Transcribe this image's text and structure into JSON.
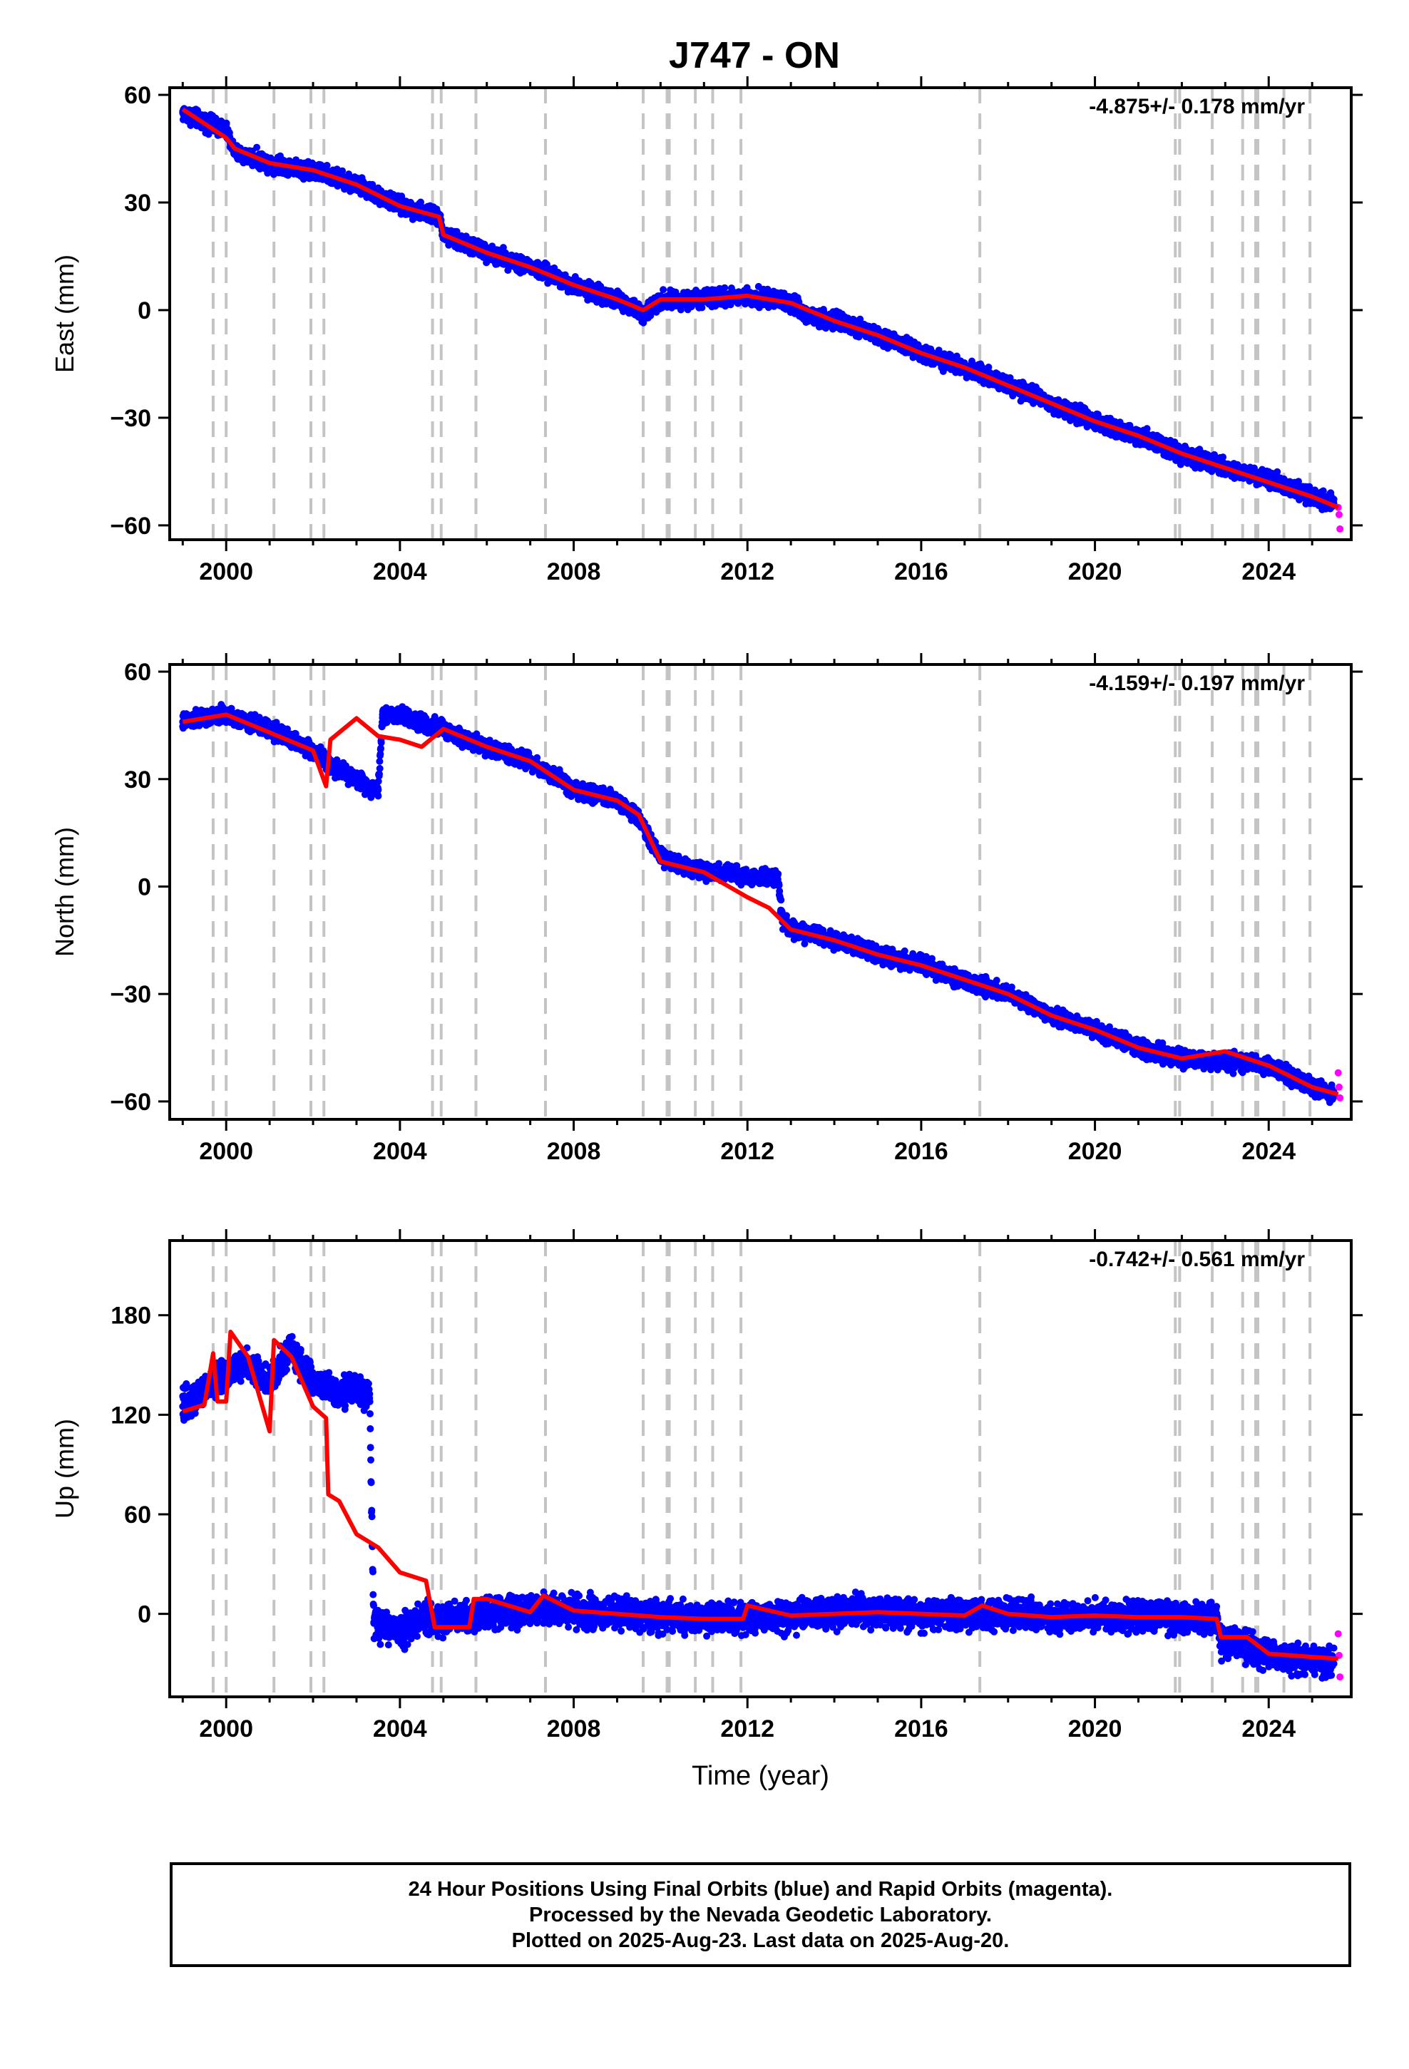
{
  "title": "J747 - ON",
  "chart_data": [
    {
      "type": "scatter",
      "panel": "east",
      "ylabel": "East (mm)",
      "xlabel": "",
      "xlim": [
        1998.7,
        2025.9
      ],
      "ylim": [
        -64,
        62
      ],
      "yticks": [
        60,
        30,
        0,
        -30,
        -60
      ],
      "yticklabels": [
        "60",
        "30",
        "0",
        "−30",
        "−60"
      ],
      "xticks": [
        2000,
        2004,
        2008,
        2012,
        2016,
        2020,
        2024
      ],
      "xticklabels": [
        "2000",
        "2004",
        "2008",
        "2012",
        "2016",
        "2020",
        "2024"
      ],
      "rate_annotation": "-4.875+/- 0.178 mm/yr",
      "series": [
        {
          "color": "#0000ff",
          "points": [
            [
              1999.0,
              55
            ],
            [
              2000.0,
              50
            ],
            [
              2000.2,
              44
            ],
            [
              2001.0,
              41
            ],
            [
              2002.0,
              39
            ],
            [
              2003.0,
              35
            ],
            [
              2004.0,
              29
            ],
            [
              2004.9,
              26
            ],
            [
              2005.0,
              21
            ],
            [
              2006.0,
              16
            ],
            [
              2007.0,
              12
            ],
            [
              2008.0,
              7
            ],
            [
              2009.0,
              3
            ],
            [
              2009.6,
              -1
            ],
            [
              2010.0,
              3
            ],
            [
              2011.0,
              3
            ],
            [
              2012.0,
              4
            ],
            [
              2013.0,
              2
            ],
            [
              2013.5,
              -2
            ],
            [
              2014.0,
              -3
            ],
            [
              2015.0,
              -7
            ],
            [
              2016.0,
              -12
            ],
            [
              2017.0,
              -16
            ],
            [
              2018.0,
              -21
            ],
            [
              2019.0,
              -26
            ],
            [
              2020.0,
              -31
            ],
            [
              2021.0,
              -35
            ],
            [
              2022.0,
              -40
            ],
            [
              2023.0,
              -44
            ],
            [
              2024.0,
              -47
            ],
            [
              2025.0,
              -52
            ],
            [
              2025.5,
              -54
            ]
          ]
        },
        {
          "color": "#ff00ff",
          "points": [
            [
              2025.6,
              -55
            ],
            [
              2025.62,
              -57
            ],
            [
              2025.64,
              -61
            ]
          ]
        },
        {
          "color": "#ff0000",
          "points": [
            [
              1999.0,
              56
            ],
            [
              2000.0,
              48
            ],
            [
              2000.2,
              45
            ],
            [
              2001.0,
              41
            ],
            [
              2002.0,
              39
            ],
            [
              2003.0,
              35
            ],
            [
              2004.0,
              29
            ],
            [
              2004.9,
              26
            ],
            [
              2005.0,
              21
            ],
            [
              2006.0,
              16
            ],
            [
              2007.0,
              12
            ],
            [
              2008.0,
              7
            ],
            [
              2009.0,
              3
            ],
            [
              2009.6,
              0
            ],
            [
              2010.0,
              3
            ],
            [
              2011.0,
              3
            ],
            [
              2012.0,
              4
            ],
            [
              2013.0,
              2
            ],
            [
              2014.0,
              -3
            ],
            [
              2015.0,
              -7
            ],
            [
              2016.0,
              -12
            ],
            [
              2017.0,
              -16
            ],
            [
              2018.0,
              -21
            ],
            [
              2019.0,
              -26
            ],
            [
              2020.0,
              -31
            ],
            [
              2021.0,
              -35
            ],
            [
              2022.0,
              -40
            ],
            [
              2023.0,
              -44
            ],
            [
              2024.0,
              -48
            ],
            [
              2025.0,
              -52
            ],
            [
              2025.6,
              -55
            ]
          ]
        }
      ]
    },
    {
      "type": "scatter",
      "panel": "north",
      "ylabel": "North (mm)",
      "xlabel": "",
      "xlim": [
        1998.7,
        2025.9
      ],
      "ylim": [
        -65,
        62
      ],
      "yticks": [
        60,
        30,
        0,
        -30,
        -60
      ],
      "yticklabels": [
        "60",
        "30",
        "0",
        "−30",
        "−60"
      ],
      "xticks": [
        2000,
        2004,
        2008,
        2012,
        2016,
        2020,
        2024
      ],
      "xticklabels": [
        "2000",
        "2004",
        "2008",
        "2012",
        "2016",
        "2020",
        "2024"
      ],
      "rate_annotation": "-4.159+/- 0.197 mm/yr",
      "series": [
        {
          "color": "#0000ff",
          "points": [
            [
              1999.0,
              46
            ],
            [
              2000.0,
              48
            ],
            [
              2001.0,
              44
            ],
            [
              2002.0,
              38
            ],
            [
              2002.5,
              33
            ],
            [
              2003.0,
              30
            ],
            [
              2003.5,
              27
            ],
            [
              2003.6,
              48
            ],
            [
              2004.0,
              48
            ],
            [
              2004.5,
              46
            ],
            [
              2005.0,
              44
            ],
            [
              2006.0,
              39
            ],
            [
              2007.0,
              35
            ],
            [
              2008.0,
              27
            ],
            [
              2009.0,
              24
            ],
            [
              2009.5,
              19
            ],
            [
              2010.0,
              8
            ],
            [
              2011.0,
              4
            ],
            [
              2012.0,
              3
            ],
            [
              2012.7,
              2
            ],
            [
              2012.8,
              -9
            ],
            [
              2013.0,
              -12
            ],
            [
              2014.0,
              -15
            ],
            [
              2015.0,
              -19
            ],
            [
              2016.0,
              -22
            ],
            [
              2017.0,
              -26
            ],
            [
              2018.0,
              -30
            ],
            [
              2019.0,
              -36
            ],
            [
              2020.0,
              -40
            ],
            [
              2021.0,
              -45
            ],
            [
              2022.0,
              -48
            ],
            [
              2023.0,
              -49
            ],
            [
              2024.0,
              -50
            ],
            [
              2025.0,
              -56
            ],
            [
              2025.5,
              -58
            ]
          ]
        },
        {
          "color": "#ff00ff",
          "points": [
            [
              2025.6,
              -52
            ],
            [
              2025.62,
              -56
            ],
            [
              2025.64,
              -59
            ]
          ]
        },
        {
          "color": "#ff0000",
          "points": [
            [
              1999.0,
              46
            ],
            [
              2000.0,
              48
            ],
            [
              2001.0,
              43
            ],
            [
              2002.0,
              38
            ],
            [
              2002.3,
              28
            ],
            [
              2002.4,
              41
            ],
            [
              2003.0,
              47
            ],
            [
              2003.5,
              42
            ],
            [
              2004.0,
              41
            ],
            [
              2004.5,
              39
            ],
            [
              2005.0,
              44
            ],
            [
              2006.0,
              39
            ],
            [
              2007.0,
              35
            ],
            [
              2008.0,
              27
            ],
            [
              2009.0,
              24
            ],
            [
              2009.5,
              20
            ],
            [
              2010.0,
              7
            ],
            [
              2011.0,
              4
            ],
            [
              2012.0,
              -3
            ],
            [
              2012.5,
              -6
            ],
            [
              2013.0,
              -12
            ],
            [
              2014.0,
              -15
            ],
            [
              2015.0,
              -19
            ],
            [
              2016.0,
              -22
            ],
            [
              2017.0,
              -26
            ],
            [
              2018.0,
              -30
            ],
            [
              2019.0,
              -36
            ],
            [
              2020.0,
              -40
            ],
            [
              2021.0,
              -45
            ],
            [
              2022.0,
              -48
            ],
            [
              2023.0,
              -46
            ],
            [
              2024.0,
              -50
            ],
            [
              2025.0,
              -56
            ],
            [
              2025.6,
              -58
            ]
          ]
        }
      ]
    },
    {
      "type": "scatter",
      "panel": "up",
      "ylabel": "Up (mm)",
      "xlabel": "Time (year)",
      "xlim": [
        1998.7,
        2025.9
      ],
      "ylim": [
        -50,
        225
      ],
      "yticks": [
        180,
        120,
        60,
        0
      ],
      "yticklabels": [
        "180",
        "120",
        "60",
        "0"
      ],
      "xticks": [
        2000,
        2004,
        2008,
        2012,
        2016,
        2020,
        2024
      ],
      "xticklabels": [
        "2000",
        "2004",
        "2008",
        "2012",
        "2016",
        "2020",
        "2024"
      ],
      "rate_annotation": "-0.742+/- 0.561 mm/yr",
      "series": [
        {
          "color": "#0000ff",
          "points": [
            [
              1999.0,
              125
            ],
            [
              1999.5,
              135
            ],
            [
              2000.0,
              145
            ],
            [
              2000.5,
              150
            ],
            [
              2001.0,
              140
            ],
            [
              2001.5,
              160
            ],
            [
              2002.0,
              140
            ],
            [
              2002.5,
              135
            ],
            [
              2003.0,
              135
            ],
            [
              2003.3,
              130
            ],
            [
              2003.4,
              -5
            ],
            [
              2004.0,
              -10
            ],
            [
              2004.5,
              -3
            ],
            [
              2005.0,
              -3
            ],
            [
              2006.0,
              0
            ],
            [
              2007.0,
              3
            ],
            [
              2008.0,
              2
            ],
            [
              2009.0,
              0
            ],
            [
              2010.0,
              -2
            ],
            [
              2011.0,
              -3
            ],
            [
              2012.0,
              -2
            ],
            [
              2013.0,
              -1
            ],
            [
              2014.0,
              0
            ],
            [
              2015.0,
              2
            ],
            [
              2016.0,
              0
            ],
            [
              2017.0,
              -1
            ],
            [
              2018.0,
              0
            ],
            [
              2019.0,
              -2
            ],
            [
              2020.0,
              -1
            ],
            [
              2021.0,
              -2
            ],
            [
              2022.0,
              -2
            ],
            [
              2022.8,
              -3
            ],
            [
              2022.9,
              -16
            ],
            [
              2023.5,
              -20
            ],
            [
              2024.0,
              -25
            ],
            [
              2025.0,
              -28
            ],
            [
              2025.5,
              -30
            ]
          ]
        },
        {
          "color": "#ff00ff",
          "points": [
            [
              2025.6,
              -12
            ],
            [
              2025.62,
              -25
            ],
            [
              2025.64,
              -38
            ]
          ]
        },
        {
          "color": "#ff0000",
          "points": [
            [
              1999.0,
              122
            ],
            [
              1999.5,
              126
            ],
            [
              1999.7,
              157
            ],
            [
              1999.8,
              128
            ],
            [
              2000.0,
              128
            ],
            [
              2000.1,
              170
            ],
            [
              2000.5,
              155
            ],
            [
              2001.0,
              110
            ],
            [
              2001.1,
              165
            ],
            [
              2001.5,
              155
            ],
            [
              2002.0,
              125
            ],
            [
              2002.3,
              118
            ],
            [
              2002.35,
              72
            ],
            [
              2002.6,
              68
            ],
            [
              2003.0,
              48
            ],
            [
              2003.5,
              40
            ],
            [
              2004.0,
              25
            ],
            [
              2004.6,
              20
            ],
            [
              2004.8,
              -8
            ],
            [
              2005.0,
              -8
            ],
            [
              2005.6,
              -8
            ],
            [
              2005.7,
              9
            ],
            [
              2006.0,
              9
            ],
            [
              2007.0,
              1
            ],
            [
              2007.3,
              11
            ],
            [
              2008.0,
              2
            ],
            [
              2009.0,
              0
            ],
            [
              2010.0,
              -2
            ],
            [
              2011.0,
              -3
            ],
            [
              2011.9,
              -3
            ],
            [
              2012.0,
              5
            ],
            [
              2013.0,
              -1
            ],
            [
              2014.0,
              0
            ],
            [
              2015.0,
              1
            ],
            [
              2016.0,
              0
            ],
            [
              2017.0,
              -1
            ],
            [
              2017.4,
              5
            ],
            [
              2018.0,
              0
            ],
            [
              2019.0,
              -2
            ],
            [
              2020.0,
              -1
            ],
            [
              2021.0,
              -2
            ],
            [
              2022.0,
              -2
            ],
            [
              2022.8,
              -3
            ],
            [
              2022.9,
              -14
            ],
            [
              2023.5,
              -14
            ],
            [
              2024.0,
              -24
            ],
            [
              2025.0,
              -26
            ],
            [
              2025.6,
              -27
            ]
          ]
        }
      ]
    }
  ],
  "event_lines": [
    1999.7,
    2000.0,
    2001.1,
    2001.95,
    2002.25,
    2004.75,
    2004.95,
    2005.75,
    2007.35,
    2009.6,
    2010.15,
    2010.2,
    2010.8,
    2011.2,
    2011.85,
    2017.35,
    2021.85,
    2021.95,
    2022.7,
    2023.4,
    2023.7,
    2023.75,
    2024.35,
    2024.95
  ],
  "footer": {
    "line1": "24 Hour Positions Using Final Orbits (blue) and Rapid Orbits (magenta).",
    "line2": "Processed by the Nevada Geodetic Laboratory.",
    "line3": "Plotted on 2025-Aug-23. Last data on 2025-Aug-20."
  }
}
